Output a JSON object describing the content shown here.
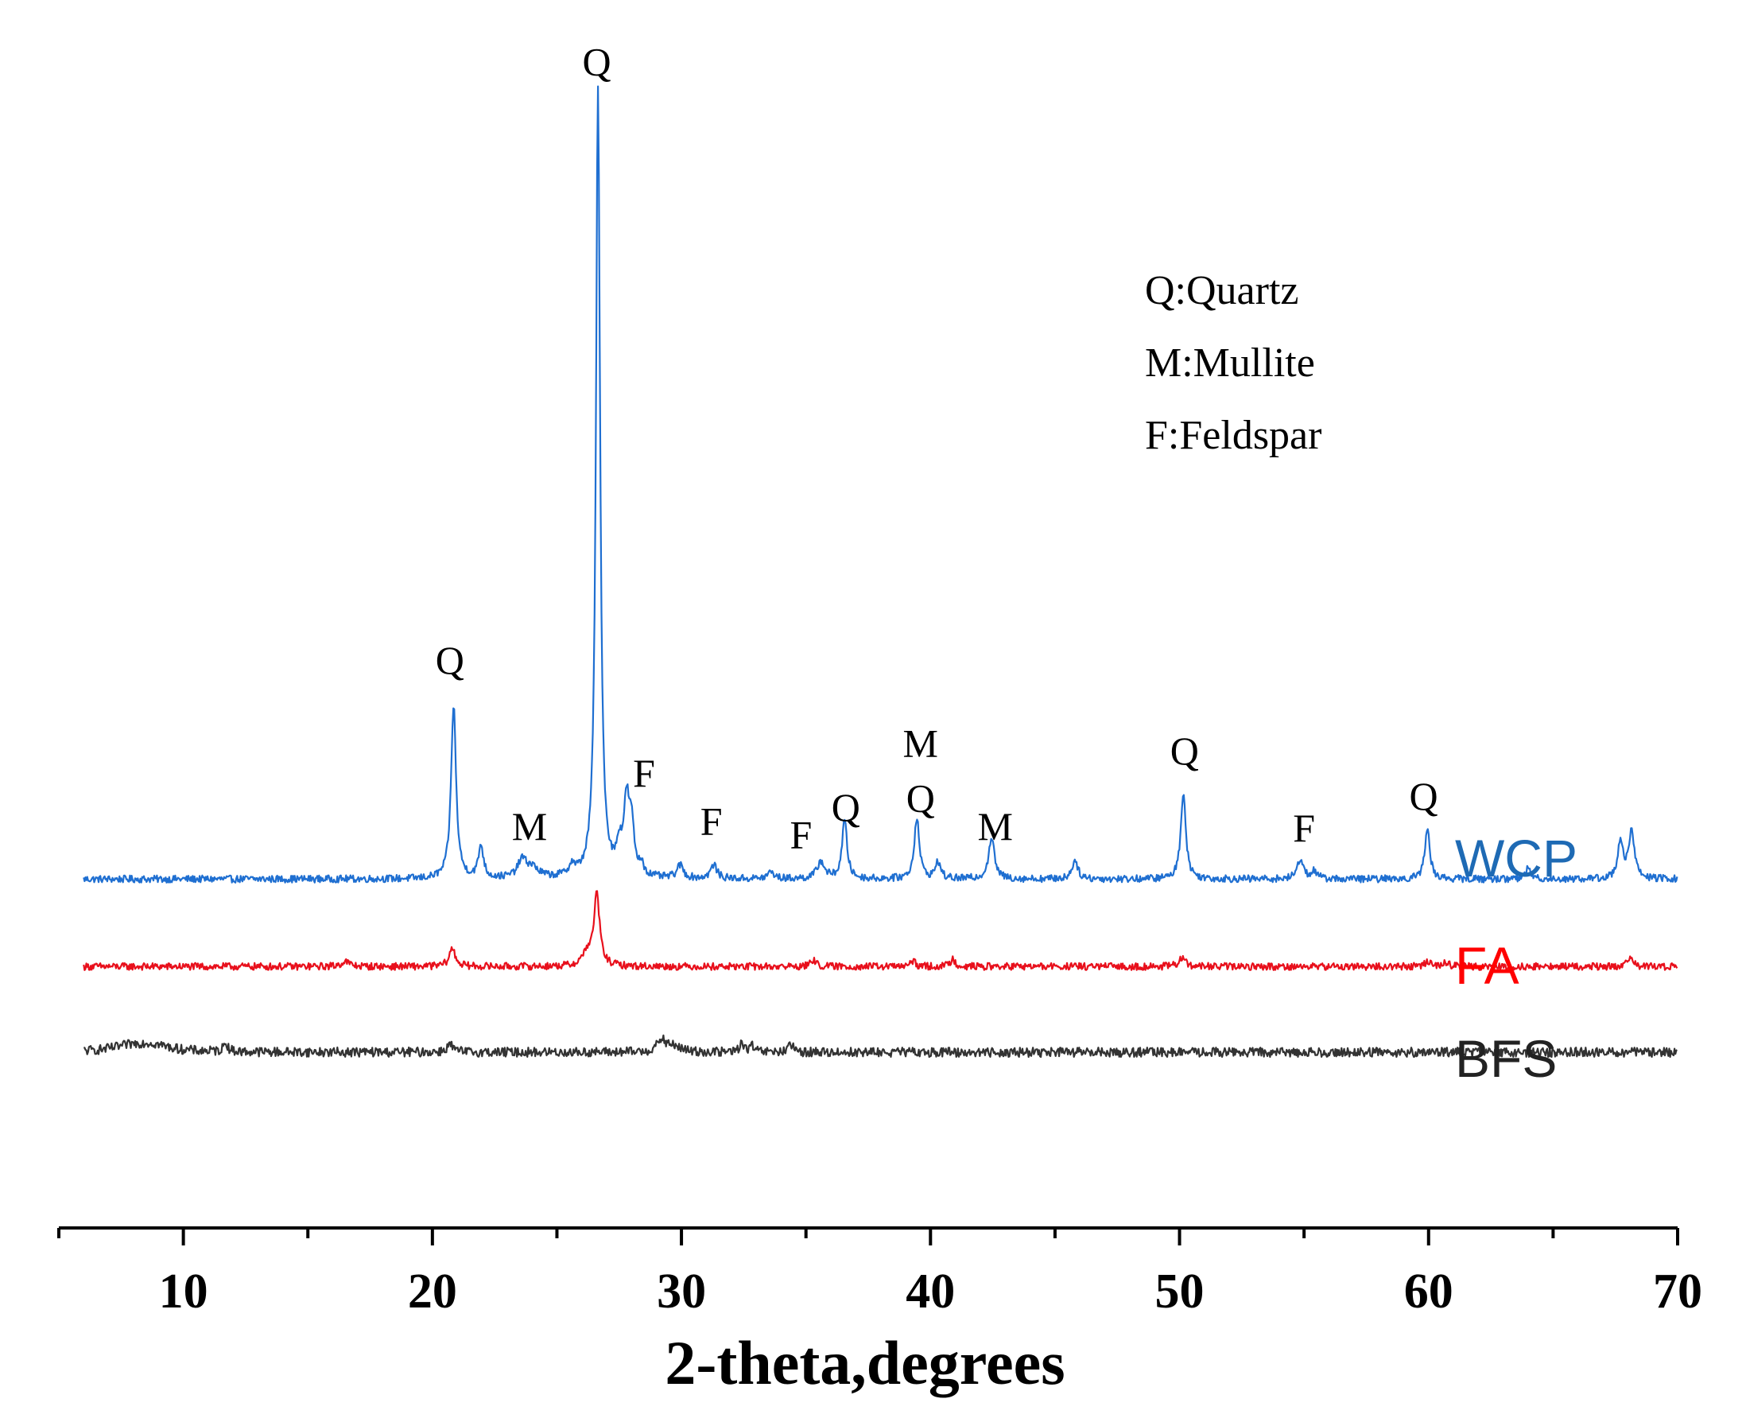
{
  "chart_data": {
    "type": "line",
    "title": "",
    "xlabel": "2-theta,degrees",
    "ylabel": "",
    "xlim": [
      5,
      70
    ],
    "ylim": [
      0,
      100
    ],
    "grid": false,
    "x_major_ticks": [
      10,
      20,
      30,
      40,
      50,
      60,
      70
    ],
    "x_minor_ticks": [
      5,
      15,
      25,
      35,
      45,
      55,
      65
    ],
    "x_tick_labels": [
      "10",
      "20",
      "30",
      "40",
      "50",
      "60",
      "70"
    ],
    "legend": {
      "placement": "top-right",
      "entries": [
        "Q:Quartz",
        "M:Mullite",
        "F:Feldspar"
      ]
    },
    "colors": {
      "WCP": "#1f6fd1",
      "FA": "#e8101c",
      "BFS": "#333333",
      "WCP_label": "#1e6ab4",
      "FA_label": "#ff0000",
      "BFS_label": "#222222"
    },
    "series": [
      {
        "name": "WCP",
        "label": "WCP",
        "baseline": 36.7,
        "peaks": [
          [
            20.85,
            20.3,
            0.12
          ],
          [
            21.95,
            3.8,
            0.12
          ],
          [
            23.6,
            2.0,
            0.2
          ],
          [
            24.0,
            1.2,
            0.3
          ],
          [
            25.6,
            1.2,
            0.15
          ],
          [
            26.65,
            92.0,
            0.1
          ],
          [
            27.5,
            3.0,
            0.12
          ],
          [
            27.8,
            8.5,
            0.14
          ],
          [
            28.0,
            5.0,
            0.12
          ],
          [
            28.4,
            1.3,
            0.1
          ],
          [
            29.95,
            1.5,
            0.15
          ],
          [
            31.3,
            1.6,
            0.15
          ],
          [
            33.6,
            0.8,
            0.15
          ],
          [
            35.6,
            2.0,
            0.18
          ],
          [
            36.55,
            6.8,
            0.12
          ],
          [
            39.45,
            7.2,
            0.12
          ],
          [
            40.3,
            2.0,
            0.12
          ],
          [
            42.45,
            4.8,
            0.14
          ],
          [
            45.8,
            2.2,
            0.14
          ],
          [
            50.15,
            10.2,
            0.12
          ],
          [
            54.85,
            2.4,
            0.14
          ],
          [
            55.4,
            0.9,
            0.14
          ],
          [
            59.95,
            5.9,
            0.12
          ],
          [
            64.0,
            1.2,
            0.14
          ],
          [
            67.7,
            4.5,
            0.12
          ],
          [
            68.15,
            5.4,
            0.14
          ]
        ]
      },
      {
        "name": "FA",
        "label": "FA",
        "baseline": 26.5,
        "peaks": [
          [
            16.5,
            0.6,
            0.2
          ],
          [
            20.8,
            2.1,
            0.15
          ],
          [
            26.2,
            1.5,
            0.2
          ],
          [
            26.6,
            8.4,
            0.14
          ],
          [
            35.3,
            0.8,
            0.12
          ],
          [
            39.3,
            0.6,
            0.12
          ],
          [
            40.9,
            0.9,
            0.12
          ],
          [
            50.1,
            1.0,
            0.15
          ],
          [
            60.0,
            0.6,
            0.15
          ],
          [
            60.7,
            0.5,
            0.12
          ],
          [
            68.1,
            0.8,
            0.15
          ]
        ]
      },
      {
        "name": "BFS",
        "label": "BFS",
        "baseline": 16.5,
        "peaks": [
          [
            8.0,
            0.7,
            1.0
          ],
          [
            8.8,
            0.6,
            0.8
          ],
          [
            11.7,
            1.1,
            0.1
          ],
          [
            20.7,
            0.9,
            0.15
          ],
          [
            29.2,
            1.4,
            0.2
          ],
          [
            29.7,
            0.7,
            0.3
          ],
          [
            32.4,
            1.0,
            0.1
          ],
          [
            32.8,
            0.8,
            0.1
          ],
          [
            34.4,
            0.8,
            0.12
          ]
        ]
      }
    ],
    "peak_annotations": [
      {
        "text": "Q",
        "x": 20.7,
        "y": 60.7
      },
      {
        "text": "M",
        "x": 23.9,
        "y": 41.3
      },
      {
        "text": "Q",
        "x": 26.6,
        "y": 130.5
      },
      {
        "text": "F",
        "x": 28.5,
        "y": 47.5
      },
      {
        "text": "F",
        "x": 31.2,
        "y": 41.9
      },
      {
        "text": "F",
        "x": 34.8,
        "y": 40.3
      },
      {
        "text": "Q",
        "x": 36.6,
        "y": 43.5
      },
      {
        "text": "M",
        "x": 39.6,
        "y": 51.0
      },
      {
        "text": "Q",
        "x": 39.6,
        "y": 44.6
      },
      {
        "text": "M",
        "x": 42.6,
        "y": 41.3
      },
      {
        "text": "Q",
        "x": 50.2,
        "y": 50.1
      },
      {
        "text": "F",
        "x": 55.0,
        "y": 41.1
      },
      {
        "text": "Q",
        "x": 59.8,
        "y": 44.8
      }
    ]
  }
}
